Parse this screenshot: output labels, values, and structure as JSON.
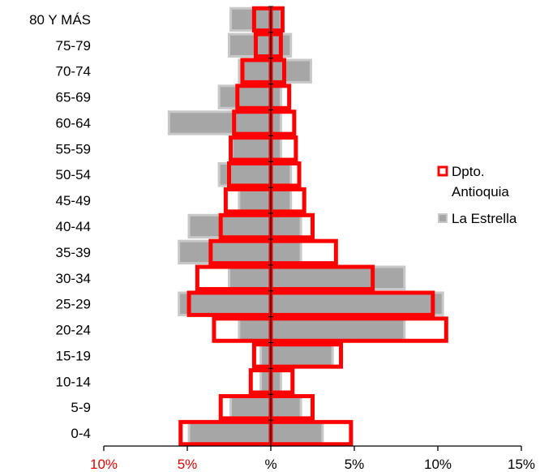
{
  "chart_data": {
    "type": "bar",
    "orientation": "horizontal",
    "subtype": "population-pyramid",
    "categories": [
      "0-4",
      "5-9",
      "10-14",
      "15-19",
      "20-24",
      "25-29",
      "30-34",
      "35-39",
      "40-44",
      "45-49",
      "50-54",
      "55-59",
      "60-64",
      "65-69",
      "70-74",
      "75-79",
      "80 Y MÁS"
    ],
    "xlim": [
      -10,
      15
    ],
    "x_ticks": [
      {
        "value": -10,
        "label": "10%",
        "color": "#e00000"
      },
      {
        "value": -5,
        "label": "5%",
        "color": "#e00000"
      },
      {
        "value": 0,
        "label": "%",
        "color": "#000000"
      },
      {
        "value": 5,
        "label": "5%",
        "color": "#000000"
      },
      {
        "value": 10,
        "label": "10%",
        "color": "#000000"
      },
      {
        "value": 15,
        "label": "15%",
        "color": "#000000"
      }
    ],
    "series": [
      {
        "name": "La Estrella",
        "style": "filled",
        "fill": "#a6a6a6",
        "stroke": "#c8c8c8",
        "left": [
          4.9,
          2.4,
          0.6,
          0.6,
          1.9,
          5.5,
          2.5,
          5.5,
          4.9,
          1.9,
          3.1,
          2.3,
          6.1,
          3.1,
          1.9,
          2.5,
          2.4
        ],
        "right": [
          3.1,
          1.8,
          0.6,
          3.7,
          8.0,
          10.3,
          8.0,
          1.8,
          1.8,
          1.2,
          1.2,
          0.6,
          0.6,
          0.6,
          2.4,
          1.2,
          0.6
        ]
      },
      {
        "name": "Dpto. Antioquia",
        "style": "outline",
        "stroke": "#ff0000",
        "left": [
          5.4,
          3.0,
          1.2,
          1.0,
          3.4,
          4.9,
          4.4,
          3.6,
          3.0,
          2.7,
          2.5,
          2.4,
          2.2,
          2.0,
          1.7,
          0.9,
          1.0
        ],
        "right": [
          4.8,
          2.5,
          1.3,
          4.2,
          10.5,
          9.7,
          6.1,
          3.9,
          2.5,
          2.0,
          1.7,
          1.5,
          1.4,
          1.1,
          0.8,
          0.6,
          0.7
        ]
      }
    ],
    "legend": {
      "position": "right",
      "items": [
        {
          "label_lines": [
            "Dpto.",
            "Antioquia"
          ],
          "style": "outline",
          "color": "#ff0000"
        },
        {
          "label_lines": [
            "La Estrella"
          ],
          "style": "filled",
          "color": "#a6a6a6"
        }
      ]
    },
    "title": "",
    "xlabel": "",
    "ylabel": ""
  }
}
